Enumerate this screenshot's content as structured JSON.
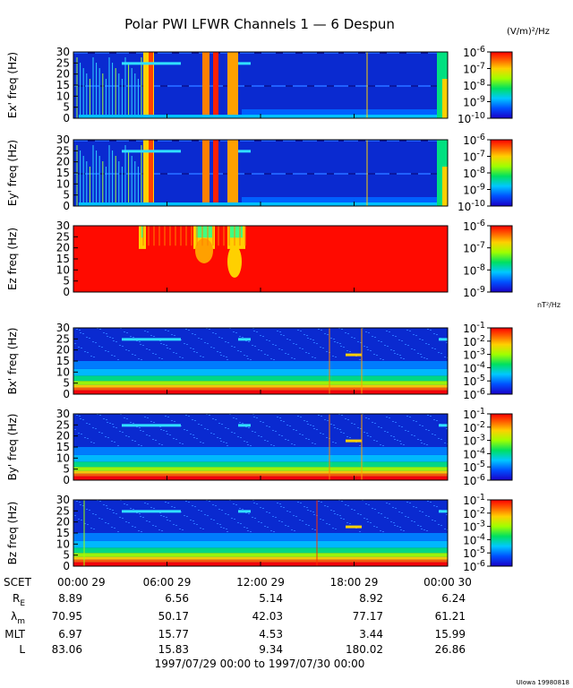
{
  "title": "Polar PWI LFWR Channels 1 — 6 Despun",
  "unit_electric": "(V/m)²/Hz",
  "unit_magnetic": "nT²/Hz",
  "credit": "UIowa 19980818",
  "date_range": "1997/07/29 00:00 to 1997/07/30 00:00",
  "xaxis": {
    "labels": [
      "00:00 29",
      "06:00 29",
      "12:00 29",
      "18:00 29",
      "00:00 30"
    ],
    "scet_label": "SCET"
  },
  "ephemeris": [
    {
      "label": "R",
      "sub": "E",
      "values": [
        "8.89",
        "6.56",
        "5.14",
        "8.92",
        "6.24"
      ]
    },
    {
      "label": "λ",
      "sub": "m",
      "values": [
        "70.95",
        "50.17",
        "42.03",
        "77.17",
        "61.21"
      ]
    },
    {
      "label": "MLT",
      "sub": "",
      "values": [
        "6.97",
        "15.77",
        "4.53",
        "3.44",
        "15.99"
      ]
    },
    {
      "label": "L",
      "sub": "",
      "values": [
        "83.06",
        "15.83",
        "9.34",
        "180.02",
        "26.86"
      ]
    }
  ],
  "chart_data": [
    {
      "type": "heatmap",
      "ylabel": "Ex' freq (Hz)",
      "ylim": [
        0,
        30
      ],
      "yticks": [
        "0",
        "5",
        "10",
        "15",
        "20",
        "25",
        "30"
      ],
      "xlim_hours": [
        0,
        24
      ],
      "color_scale": "log",
      "colorbar_range": [
        "10^-10",
        "10^-6"
      ],
      "colorbar_ticks": [
        "10^-6",
        "10^-7",
        "10^-8",
        "10^-9",
        "10^-10"
      ]
    },
    {
      "type": "heatmap",
      "ylabel": "Ey' freq (Hz)",
      "ylim": [
        0,
        30
      ],
      "yticks": [
        "0",
        "5",
        "10",
        "15",
        "20",
        "25",
        "30"
      ],
      "xlim_hours": [
        0,
        24
      ],
      "color_scale": "log",
      "colorbar_range": [
        "10^-10",
        "10^-6"
      ],
      "colorbar_ticks": [
        "10^-6",
        "10^-7",
        "10^-8",
        "10^-9",
        "10^-10"
      ]
    },
    {
      "type": "heatmap",
      "ylabel": "Ez freq (Hz)",
      "ylim": [
        0,
        30
      ],
      "yticks": [
        "0",
        "5",
        "10",
        "15",
        "20",
        "25",
        "30"
      ],
      "xlim_hours": [
        0,
        24
      ],
      "color_scale": "log",
      "colorbar_range": [
        "10^-9",
        "10^-6"
      ],
      "colorbar_ticks": [
        "10^-6",
        "10^-7",
        "10^-8",
        "10^-9"
      ]
    },
    {
      "type": "heatmap",
      "ylabel": "Bx' freq (Hz)",
      "ylim": [
        0,
        30
      ],
      "yticks": [
        "0",
        "5",
        "10",
        "15",
        "20",
        "25",
        "30"
      ],
      "xlim_hours": [
        0,
        24
      ],
      "color_scale": "log",
      "colorbar_range": [
        "10^-6",
        "10^-1"
      ],
      "colorbar_ticks": [
        "10^-1",
        "10^-2",
        "10^-3",
        "10^-4",
        "10^-5",
        "10^-6"
      ]
    },
    {
      "type": "heatmap",
      "ylabel": "By' freq (Hz)",
      "ylim": [
        0,
        30
      ],
      "yticks": [
        "0",
        "5",
        "10",
        "15",
        "20",
        "25",
        "30"
      ],
      "xlim_hours": [
        0,
        24
      ],
      "color_scale": "log",
      "colorbar_range": [
        "10^-6",
        "10^-1"
      ],
      "colorbar_ticks": [
        "10^-1",
        "10^-2",
        "10^-3",
        "10^-4",
        "10^-5",
        "10^-6"
      ]
    },
    {
      "type": "heatmap",
      "ylabel": "Bz freq (Hz)",
      "ylim": [
        0,
        30
      ],
      "yticks": [
        "0",
        "5",
        "10",
        "15",
        "20",
        "25",
        "30"
      ],
      "xlim_hours": [
        0,
        24
      ],
      "color_scale": "log",
      "colorbar_range": [
        "10^-6",
        "10^-1"
      ],
      "colorbar_ticks": [
        "10^-1",
        "10^-2",
        "10^-3",
        "10^-4",
        "10^-5",
        "10^-6"
      ]
    }
  ]
}
